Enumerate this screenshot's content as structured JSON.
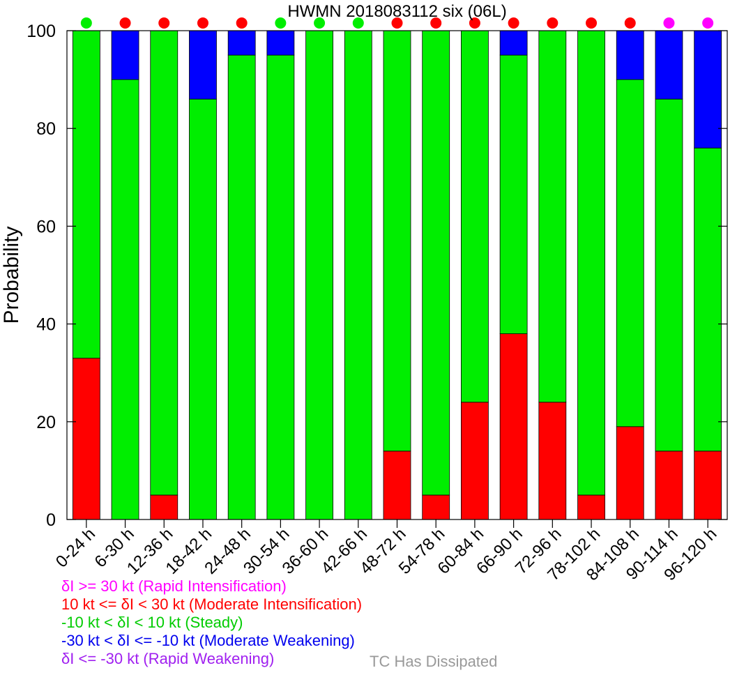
{
  "chart_data": {
    "type": "bar",
    "stacked": true,
    "title": "HWMN 2018083112 six (06L)",
    "ylabel": "Probability",
    "xlabel": "",
    "ylim": [
      0,
      100
    ],
    "yticks": [
      0,
      20,
      40,
      60,
      80,
      100
    ],
    "grid": false,
    "categories": [
      "0-24 h",
      "6-30 h",
      "12-36 h",
      "18-42 h",
      "24-48 h",
      "30-54 h",
      "36-60 h",
      "42-66 h",
      "48-72 h",
      "54-78 h",
      "60-84 h",
      "66-90 h",
      "72-96 h",
      "78-102 h",
      "84-108 h",
      "90-114 h",
      "96-120 h"
    ],
    "series": [
      {
        "color": "#ff0000",
        "values": [
          33,
          0,
          5,
          0,
          0,
          0,
          0,
          0,
          14,
          5,
          24,
          38,
          24,
          5,
          19,
          14,
          14
        ]
      },
      {
        "color": "#00ee00",
        "values": [
          67,
          90,
          95,
          86,
          95,
          95,
          100,
          100,
          86,
          95,
          76,
          57,
          76,
          95,
          71,
          72,
          62
        ]
      },
      {
        "color": "#0000ff",
        "values": [
          0,
          10,
          0,
          14,
          5,
          5,
          0,
          0,
          0,
          0,
          0,
          5,
          0,
          0,
          10,
          14,
          24
        ]
      }
    ],
    "indicator_dots": [
      "#00ee00",
      "#ff0000",
      "#ff0000",
      "#ff0000",
      "#ff0000",
      "#00ee00",
      "#00ee00",
      "#00ee00",
      "#ff0000",
      "#ff0000",
      "#ff0000",
      "#ff0000",
      "#ff0000",
      "#ff0000",
      "#ff0000",
      "#ff00ff",
      "#ff00ff"
    ]
  },
  "legend": {
    "items": [
      {
        "text": "δI >= 30 kt (Rapid Intensification)",
        "color": "#ff00ff"
      },
      {
        "text": "10 kt <= δI < 30 kt (Moderate Intensification)",
        "color": "#ff0000"
      },
      {
        "text": "-10 kt < δI < 10 kt (Steady)",
        "color": "#00cc00"
      },
      {
        "text": "-30 kt < δI <= -10 kt (Moderate Weakening)",
        "color": "#0000ee"
      },
      {
        "text": "δI <= -30 kt (Rapid Weakening)",
        "color": "#a020f0"
      }
    ],
    "dissipated": {
      "text": "TC Has Dissipated",
      "color": "#999999"
    }
  }
}
